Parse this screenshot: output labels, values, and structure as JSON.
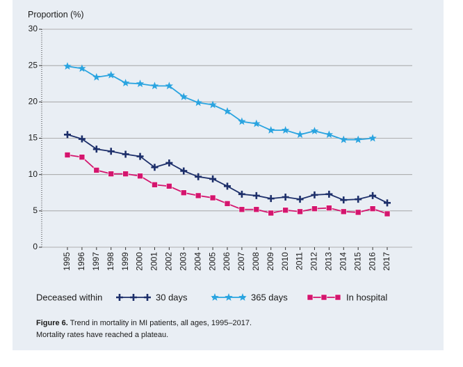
{
  "chart_data": {
    "type": "line",
    "y_axis_label": "Proportion (%)",
    "categories": [
      "1995",
      "1996",
      "1997",
      "1998",
      "1999",
      "2000",
      "2001",
      "2002",
      "2003",
      "2004",
      "2005",
      "2006",
      "2007",
      "2008",
      "2009",
      "2010",
      "2011",
      "2012",
      "2013",
      "2014",
      "2015",
      "2016",
      "2017"
    ],
    "legend_title": "Deceased within",
    "series": [
      {
        "name": "30 days",
        "color": "#1d2f6a",
        "marker": "plus",
        "values": [
          15.5,
          14.9,
          13.5,
          13.2,
          12.8,
          12.5,
          11.0,
          11.6,
          10.5,
          9.7,
          9.4,
          8.4,
          7.3,
          7.1,
          6.7,
          6.9,
          6.6,
          7.2,
          7.3,
          6.5,
          6.6,
          7.1,
          6.1
        ]
      },
      {
        "name": "365 days",
        "color": "#2aa4e0",
        "marker": "star",
        "values": [
          24.9,
          24.6,
          23.4,
          23.7,
          22.6,
          22.5,
          22.2,
          22.2,
          20.7,
          19.9,
          19.6,
          18.7,
          17.3,
          17.0,
          16.1,
          16.1,
          15.5,
          16.0,
          15.5,
          14.8,
          14.8,
          15.0,
          null
        ]
      },
      {
        "name": "In hospital",
        "color": "#d4156e",
        "marker": "square",
        "values": [
          12.7,
          12.4,
          10.6,
          10.1,
          10.1,
          9.8,
          8.6,
          8.4,
          7.5,
          7.1,
          6.8,
          6.0,
          5.2,
          5.2,
          4.7,
          5.1,
          4.9,
          5.3,
          5.4,
          4.9,
          4.8,
          5.3,
          4.6
        ]
      }
    ],
    "ylim": [
      0,
      30
    ],
    "yticks": [
      0,
      5,
      10,
      15,
      20,
      25,
      30
    ],
    "grid": true,
    "caption_label": "Figure 6.",
    "caption": "Trend in mortality in MI patients, all ages, 1995–2017.",
    "note": "Mortality rates have reached a plateau."
  }
}
